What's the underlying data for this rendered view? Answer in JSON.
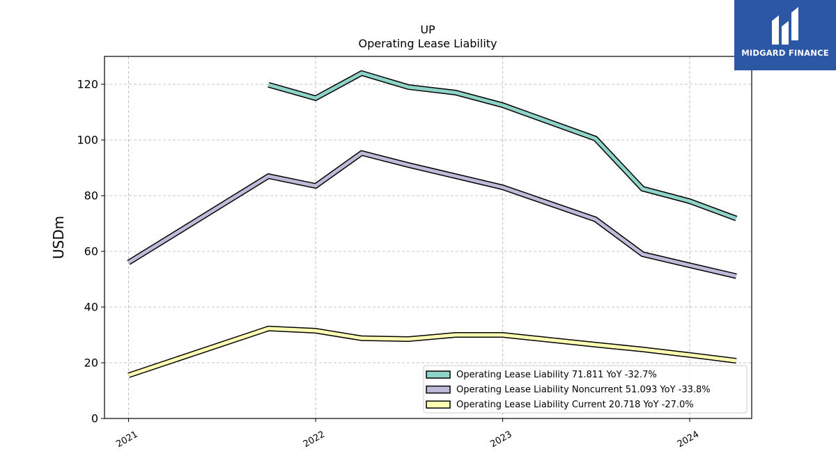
{
  "logo": {
    "text": "MIDGARD FINANCE"
  },
  "chart_data": {
    "type": "line",
    "title": "UP",
    "subtitle": "Operating Lease Liability",
    "xlabel": "",
    "ylabel": "USDm",
    "ylim": [
      0,
      130
    ],
    "yticks": [
      0,
      20,
      40,
      60,
      80,
      100,
      120
    ],
    "xlim": [
      "2020-11-15",
      "2024-05-01"
    ],
    "xticks": [
      "2021",
      "2022",
      "2023",
      "2024"
    ],
    "x": [
      "2021-01-01",
      "2021-10-01",
      "2022-01-01",
      "2022-04-01",
      "2022-07-01",
      "2022-10-01",
      "2023-01-01",
      "2023-07-01",
      "2023-10-01",
      "2024-01-01",
      "2024-04-01"
    ],
    "grid": true,
    "legend_position": "lower-right",
    "series": [
      {
        "name": "Operating Lease Liability",
        "legend": "Operating Lease Liability  71.811 YoY -32.7%",
        "color": "#8dd3c7",
        "values": [
          null,
          119.8,
          115.0,
          124.0,
          119.0,
          117.0,
          112.5,
          100.5,
          82.5,
          78.0,
          71.811
        ]
      },
      {
        "name": "Operating Lease Liability Noncurrent",
        "legend": "Operating Lease Liability Noncurrent  51.093 YoY -33.8%",
        "color": "#bebada",
        "values": [
          56.0,
          87.0,
          83.5,
          95.3,
          91.0,
          87.0,
          83.0,
          71.5,
          59.0,
          55.0,
          51.093
        ]
      },
      {
        "name": "Operating Lease Liability Current",
        "legend": "Operating Lease Liability Current  20.718 YoY -27.0%",
        "color": "#ffffb3",
        "values": [
          15.5,
          32.3,
          31.5,
          28.8,
          28.5,
          30.0,
          30.0,
          26.5,
          24.8,
          22.8,
          20.718
        ]
      }
    ]
  }
}
